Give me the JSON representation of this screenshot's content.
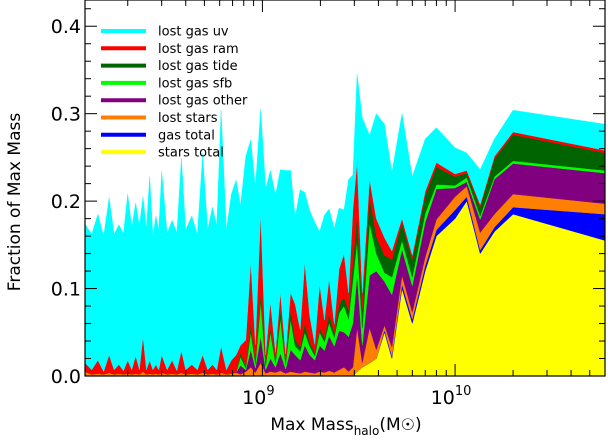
{
  "chart_data": {
    "type": "area",
    "xlabel": "Max Mass",
    "xlabel_sub": "halo",
    "xlabel_unit_open": "(M",
    "xlabel_unit_close": ")",
    "ylabel": "Fraction of Max Mass",
    "xscale": "log",
    "xlim": [
      120000000.0,
      60000000000.0
    ],
    "ylim": [
      0.0,
      0.43
    ],
    "legend_position": "top-left",
    "yticks": [
      {
        "value": 0.0,
        "label": "0.0"
      },
      {
        "value": 0.1,
        "label": "0.1"
      },
      {
        "value": 0.2,
        "label": "0.2"
      },
      {
        "value": 0.3,
        "label": "0.3"
      },
      {
        "value": 0.4,
        "label": "0.4"
      }
    ],
    "xticks": [
      {
        "value": 1000000000.0,
        "base": "10",
        "exp": "9"
      },
      {
        "value": 10000000000.0,
        "base": "10",
        "exp": "10"
      }
    ],
    "x": [
      120000000.0,
      130000000.0,
      140000000.0,
      150000000.0,
      160000000.0,
      170000000.0,
      180000000.0,
      190000000.0,
      200000000.0,
      210000000.0,
      220000000.0,
      230000000.0,
      240000000.0,
      250000000.0,
      260000000.0,
      270000000.0,
      280000000.0,
      290000000.0,
      300000000.0,
      320000000.0,
      340000000.0,
      360000000.0,
      380000000.0,
      400000000.0,
      430000000.0,
      460000000.0,
      490000000.0,
      520000000.0,
      550000000.0,
      580000000.0,
      610000000.0,
      650000000.0,
      690000000.0,
      730000000.0,
      770000000.0,
      820000000.0,
      870000000.0,
      920000000.0,
      980000000.0,
      1040000000.0,
      1100000000.0,
      1170000000.0,
      1240000000.0,
      1320000000.0,
      1400000000.0,
      1480000000.0,
      1570000000.0,
      1660000000.0,
      1760000000.0,
      1870000000.0,
      1980000000.0,
      2100000000.0,
      2220000000.0,
      2360000000.0,
      2500000000.0,
      2650000000.0,
      2800000000.0,
      2950000000.0,
      3100000000.0,
      3300000000.0,
      3600000000.0,
      3900000000.0,
      4300000000.0,
      4700000000.0,
      5300000000.0,
      6000000000.0,
      7000000000.0,
      8000000000.0,
      10000000000.0,
      11500000000.0,
      13500000000.0,
      16000000000.0,
      20000000000.0,
      60000000000.0
    ],
    "series": [
      {
        "name": "stars total",
        "color": "#ffff00",
        "values": [
          0,
          0,
          0,
          0,
          0,
          0,
          0,
          0,
          0,
          0,
          0,
          0,
          0,
          0,
          0,
          0,
          0,
          0,
          0,
          0,
          0,
          0,
          0,
          0,
          0,
          0,
          0,
          0,
          0,
          0,
          0,
          0,
          0,
          0,
          0,
          0,
          0,
          0,
          0,
          0,
          0,
          0,
          0,
          0,
          0,
          0,
          0,
          0,
          0,
          0,
          0,
          0,
          0,
          0,
          0,
          0,
          0,
          0,
          0.005,
          0.01,
          0.015,
          0.02,
          0.05,
          0.02,
          0.1,
          0.06,
          0.12,
          0.16,
          0.18,
          0.2,
          0.14,
          0.165,
          0.185,
          0.155
        ]
      },
      {
        "name": "gas total",
        "color": "#0000ff",
        "values": [
          0,
          0,
          0,
          0,
          0,
          0,
          0,
          0,
          0,
          0,
          0,
          0,
          0,
          0,
          0,
          0,
          0,
          0,
          0,
          0,
          0,
          0,
          0,
          0,
          0,
          0,
          0,
          0,
          0,
          0,
          0,
          0,
          0,
          0,
          0,
          0,
          0,
          0,
          0,
          0,
          0,
          0,
          0,
          0,
          0,
          0,
          0,
          0,
          0,
          0,
          0,
          0,
          0,
          0,
          0,
          0,
          0,
          0,
          0,
          0,
          0,
          0,
          0.003,
          0.003,
          0.005,
          0.005,
          0.006,
          0.007,
          0.01,
          0.005,
          0.004,
          0.005,
          0.008,
          0.03
        ]
      },
      {
        "name": "lost stars",
        "color": "#ff7f00",
        "values": [
          0.005,
          0.002,
          0.003,
          0.002,
          0.004,
          0.002,
          0.003,
          0.002,
          0.003,
          0.002,
          0.003,
          0.002,
          0.005,
          0.002,
          0.003,
          0.002,
          0.003,
          0.002,
          0.004,
          0.002,
          0.003,
          0.002,
          0.004,
          0.002,
          0.003,
          0.002,
          0.004,
          0.002,
          0.003,
          0.002,
          0.004,
          0.002,
          0.003,
          0.004,
          0.002,
          0.005,
          0.01,
          0.004,
          0.015,
          0.003,
          0.005,
          0.004,
          0.006,
          0.003,
          0.005,
          0.004,
          0.003,
          0.005,
          0.004,
          0.003,
          0.005,
          0.004,
          0.006,
          0.004,
          0.007,
          0.01,
          0.005,
          0.01,
          0.05,
          0.005,
          0.04,
          0.01,
          0.005,
          0.01,
          0.01,
          0.008,
          0.01,
          0.012,
          0.015,
          0.012,
          0.02,
          0.015,
          0.015,
          0.012
        ]
      },
      {
        "name": "lost gas other",
        "color": "#800080",
        "values": [
          0,
          0,
          0,
          0,
          0,
          0,
          0,
          0,
          0,
          0,
          0,
          0,
          0,
          0,
          0,
          0,
          0,
          0,
          0,
          0,
          0,
          0,
          0,
          0,
          0,
          0,
          0,
          0,
          0,
          0,
          0,
          0,
          0,
          0,
          0.01,
          0.002,
          0.02,
          0.005,
          0.03,
          0.004,
          0.015,
          0.006,
          0.02,
          0.005,
          0.025,
          0.02,
          0.015,
          0.03,
          0.02,
          0.015,
          0.03,
          0.025,
          0.04,
          0.03,
          0.045,
          0.04,
          0.04,
          0.05,
          0.06,
          0.02,
          0.06,
          0.09,
          0.05,
          0.06,
          0.03,
          0.03,
          0.04,
          0.035,
          0.01,
          0.005,
          0.015,
          0.04,
          0.035,
          0.035
        ]
      },
      {
        "name": "lost gas sfb",
        "color": "#00ff00",
        "values": [
          0,
          0,
          0,
          0,
          0,
          0,
          0,
          0,
          0,
          0,
          0,
          0,
          0,
          0,
          0,
          0,
          0,
          0,
          0,
          0,
          0,
          0,
          0,
          0,
          0,
          0,
          0,
          0,
          0,
          0,
          0,
          0,
          0,
          0,
          0.01,
          0.002,
          0.02,
          0.005,
          0.04,
          0.005,
          0.03,
          0.005,
          0.04,
          0.005,
          0.035,
          0.01,
          0.01,
          0.015,
          0.01,
          0.005,
          0.015,
          0.01,
          0.015,
          0.01,
          0.02,
          0.03,
          0.02,
          0.05,
          0.04,
          0.02,
          0.06,
          0.02,
          0.01,
          0.02,
          0.01,
          0.01,
          0.01,
          0.005,
          0.003,
          0.005,
          0.004,
          0.003,
          0.003,
          0.003
        ]
      },
      {
        "name": "lost gas tide",
        "color": "#006400",
        "values": [
          0,
          0,
          0,
          0,
          0,
          0,
          0,
          0,
          0,
          0,
          0,
          0,
          0,
          0,
          0,
          0,
          0,
          0,
          0,
          0,
          0,
          0,
          0,
          0,
          0,
          0,
          0,
          0,
          0,
          0,
          0,
          0,
          0,
          0,
          0.005,
          0.002,
          0.01,
          0.002,
          0.01,
          0.002,
          0.005,
          0.002,
          0.01,
          0.002,
          0.01,
          0.008,
          0.005,
          0.01,
          0.005,
          0.003,
          0.005,
          0.005,
          0.01,
          0.005,
          0.01,
          0.01,
          0.01,
          0.02,
          0.03,
          0.02,
          0.03,
          0.02,
          0.02,
          0.02,
          0.02,
          0.02,
          0.02,
          0.02,
          0.01,
          0.005,
          0.01,
          0.02,
          0.03,
          0.02
        ]
      },
      {
        "name": "lost gas ram",
        "color": "#ff0000",
        "values": [
          0.01,
          0.005,
          0.015,
          0.003,
          0.02,
          0.005,
          0.01,
          0.004,
          0.015,
          0.005,
          0.02,
          0.005,
          0.04,
          0.005,
          0.015,
          0.005,
          0.01,
          0.005,
          0.02,
          0.005,
          0.015,
          0.004,
          0.025,
          0.005,
          0.01,
          0.005,
          0.02,
          0.005,
          0.01,
          0.005,
          0.03,
          0.005,
          0.015,
          0.02,
          0.008,
          0.03,
          0.07,
          0.02,
          0.09,
          0.01,
          0.03,
          0.01,
          0.02,
          0.01,
          0.02,
          0.04,
          0.02,
          0.07,
          0.03,
          0.01,
          0.05,
          0.02,
          0.04,
          0.01,
          0.04,
          0.05,
          0.02,
          0.06,
          0.06,
          0.02,
          0.02,
          0.02,
          0.02,
          0.01,
          0.005,
          0.005,
          0.005,
          0.005,
          0.003,
          0.003,
          0.003,
          0.003,
          0.003,
          0.003
        ]
      },
      {
        "name": "lost gas uv",
        "color": "#00ffff",
        "values": [
          0.159,
          0.155,
          0.167,
          0.155,
          0.18,
          0.155,
          0.16,
          0.157,
          0.19,
          0.163,
          0.175,
          0.165,
          0.16,
          0.162,
          0.21,
          0.153,
          0.17,
          0.16,
          0.21,
          0.156,
          0.16,
          0.158,
          0.22,
          0.16,
          0.17,
          0.155,
          0.23,
          0.16,
          0.18,
          0.165,
          0.27,
          0.16,
          0.19,
          0.2,
          0.16,
          0.21,
          0.14,
          0.18,
          0.12,
          0.19,
          0.15,
          0.18,
          0.14,
          0.21,
          0.14,
          0.1,
          0.16,
          0.08,
          0.12,
          0.14,
          0.06,
          0.12,
          0.08,
          0.11,
          0.07,
          0.05,
          0.13,
          0.04,
          0.1,
          0.2,
          0.05,
          0.12,
          0.13,
          0.09,
          0.12,
          0.09,
          0.06,
          0.04,
          0.03,
          0.02,
          0.04,
          0.02,
          0.025,
          0.03
        ]
      }
    ],
    "legend_order": [
      "lost gas uv",
      "lost gas ram",
      "lost gas tide",
      "lost gas sfb",
      "lost gas other",
      "lost stars",
      "gas total",
      "stars total"
    ]
  }
}
